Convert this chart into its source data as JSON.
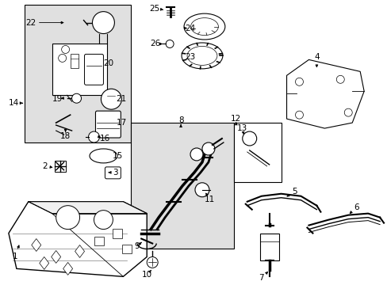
{
  "bg_color": "#ffffff",
  "line_color": "#000000",
  "shaded_color": "#e0e0e0",
  "fig_width": 4.89,
  "fig_height": 3.6,
  "dpi": 100
}
